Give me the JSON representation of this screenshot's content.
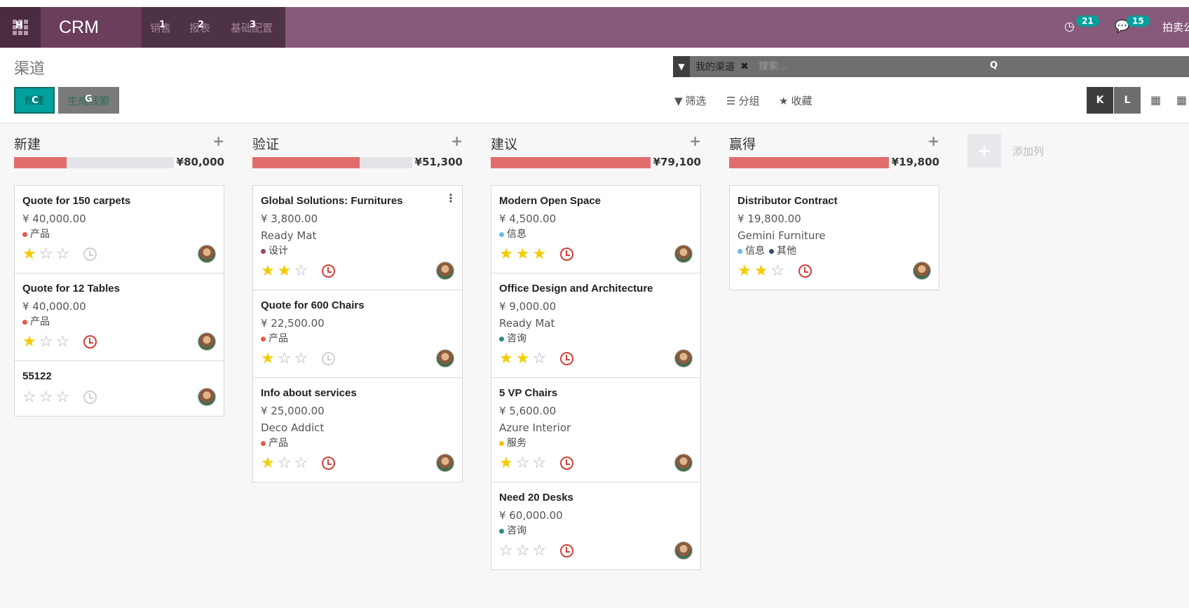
{
  "topbar": {
    "apps_hint": "H",
    "brand": "CRM",
    "menus": [
      {
        "label": "销售",
        "hint": "1"
      },
      {
        "label": "报表",
        "hint": "2"
      },
      {
        "label": "基础配置",
        "hint": "3"
      }
    ],
    "activity_count": "21",
    "message_count": "15",
    "user_name": "拍卖公"
  },
  "control_panel": {
    "title": "渠道",
    "create_label": "创建",
    "create_hint": "C",
    "generate_label": "生成线索",
    "generate_hint": "G",
    "search_facet": "我的渠道",
    "search_placeholder": "搜索...",
    "search_hint": "Q",
    "filter_label": "筛选",
    "group_label": "分组",
    "favorite_label": "收藏",
    "view_kanban_hint": "K",
    "view_list_hint": "L"
  },
  "kanban": {
    "add_column_label": "添加列",
    "columns": [
      {
        "title": "新建",
        "total": "¥80,000",
        "progress": 0.33,
        "cards": [
          {
            "title": "Quote for 150 carpets",
            "amount": "¥ 40,000.00",
            "partner": "",
            "tags": [
              {
                "label": "产品",
                "color": "#e8594e"
              }
            ],
            "stars": 1,
            "activity": "none"
          },
          {
            "title": "Quote for 12 Tables",
            "amount": "¥ 40,000.00",
            "partner": "",
            "tags": [
              {
                "label": "产品",
                "color": "#e8594e"
              }
            ],
            "stars": 1,
            "activity": "late"
          },
          {
            "title": "55122",
            "amount": "",
            "partner": "",
            "tags": [],
            "stars": 0,
            "activity": "none"
          }
        ]
      },
      {
        "title": "验证",
        "total": "¥51,300",
        "progress": 0.67,
        "cards": [
          {
            "title": "Global Solutions: Furnitures",
            "amount": "¥ 3,800.00",
            "partner": "Ready Mat",
            "tags": [
              {
                "label": "设计",
                "color": "#8a4a6b"
              }
            ],
            "stars": 2,
            "activity": "late",
            "menu": true
          },
          {
            "title": "Quote for 600 Chairs",
            "amount": "¥ 22,500.00",
            "partner": "",
            "tags": [
              {
                "label": "产品",
                "color": "#e8594e"
              }
            ],
            "stars": 1,
            "activity": "none"
          },
          {
            "title": "Info about services",
            "amount": "¥ 25,000.00",
            "partner": "Deco Addict",
            "tags": [
              {
                "label": "产品",
                "color": "#e8594e"
              }
            ],
            "stars": 1,
            "activity": "late"
          }
        ]
      },
      {
        "title": "建议",
        "total": "¥79,100",
        "progress": 1.0,
        "cards": [
          {
            "title": "Modern Open Space",
            "amount": "¥ 4,500.00",
            "partner": "",
            "tags": [
              {
                "label": "信息",
                "color": "#6cb9e6"
              }
            ],
            "stars": 3,
            "activity": "late"
          },
          {
            "title": "Office Design and Architecture",
            "amount": "¥ 9,000.00",
            "partner": "Ready Mat",
            "tags": [
              {
                "label": "咨询",
                "color": "#2f8a8a"
              }
            ],
            "stars": 2,
            "activity": "late"
          },
          {
            "title": "5 VP Chairs",
            "amount": "¥ 5,600.00",
            "partner": "Azure Interior",
            "tags": [
              {
                "label": "服务",
                "color": "#f2c400"
              }
            ],
            "stars": 1,
            "activity": "late"
          },
          {
            "title": "Need 20 Desks",
            "amount": "¥ 60,000.00",
            "partner": "",
            "tags": [
              {
                "label": "咨询",
                "color": "#2f8a8a"
              }
            ],
            "stars": 0,
            "activity": "late"
          }
        ]
      },
      {
        "title": "赢得",
        "total": "¥19,800",
        "progress": 1.0,
        "cards": [
          {
            "title": "Distributor Contract",
            "amount": "¥ 19,800.00",
            "partner": "Gemini Furniture",
            "tags": [
              {
                "label": "信息",
                "color": "#6cb9e6"
              },
              {
                "label": "其他",
                "color": "#3a4a6b"
              }
            ],
            "stars": 2,
            "activity": "late"
          }
        ]
      }
    ]
  }
}
